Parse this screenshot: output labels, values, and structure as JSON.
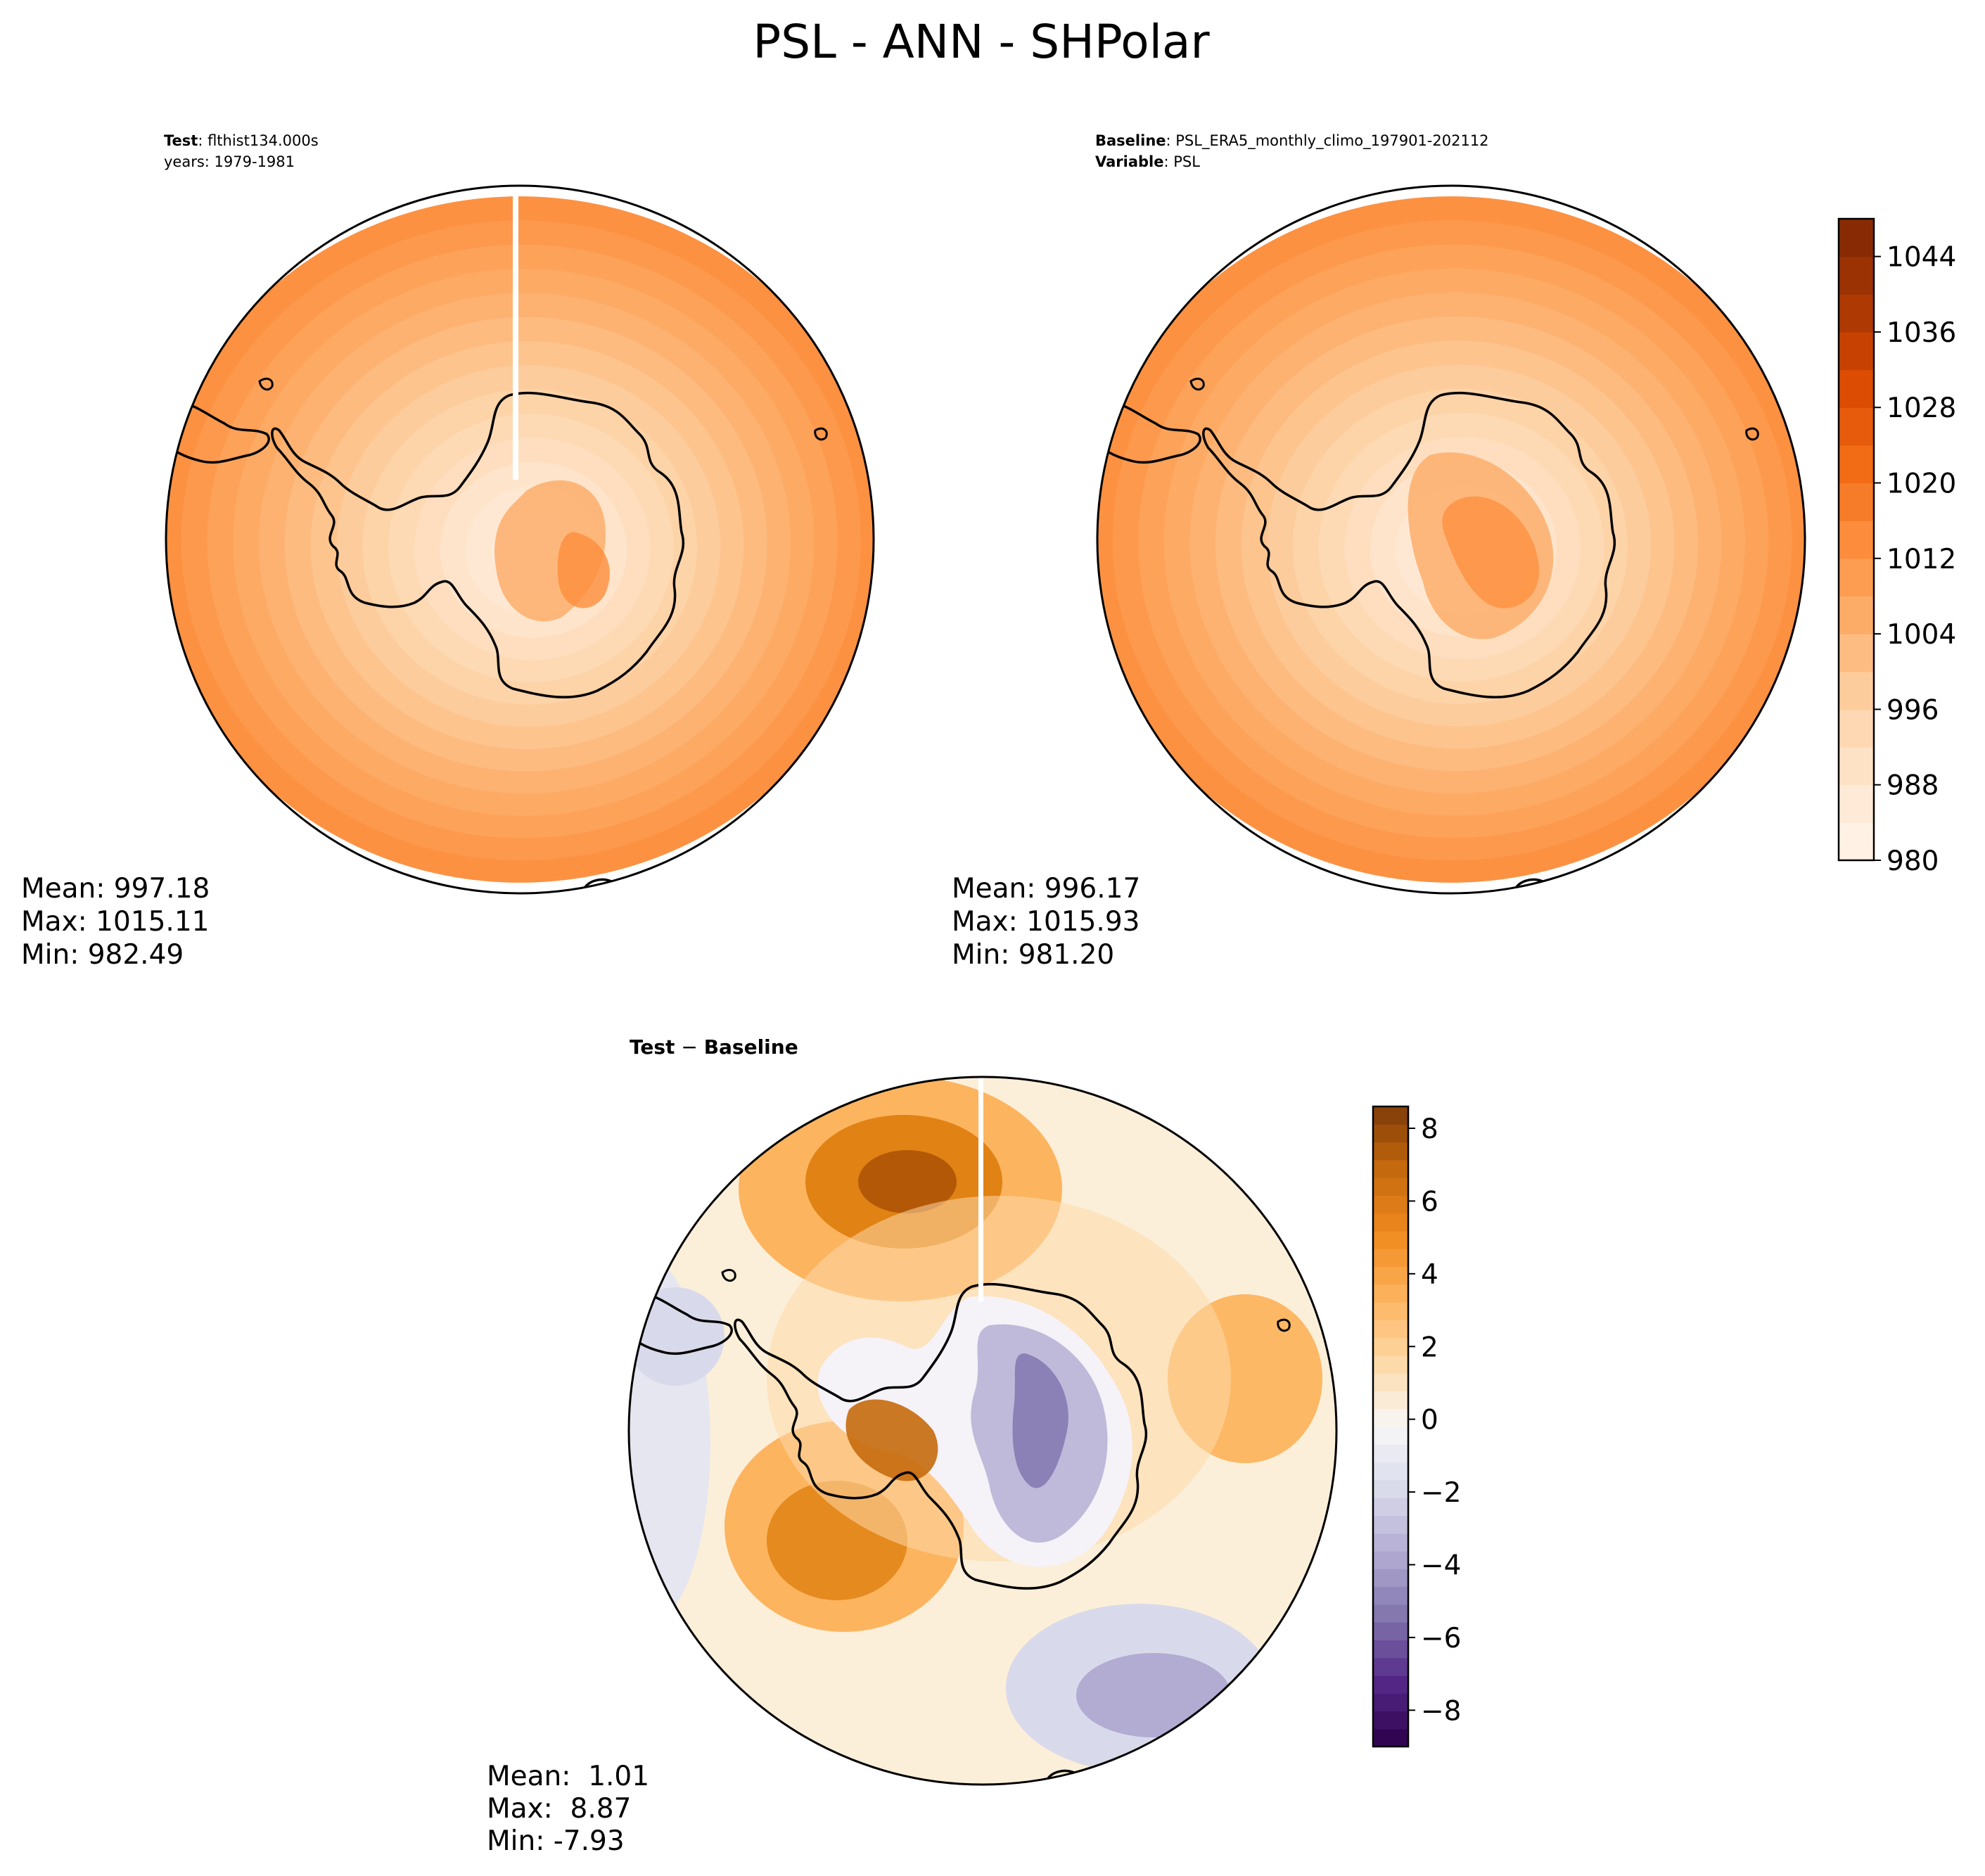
{
  "figure_title": "PSL - ANN - SHPolar",
  "colors": {
    "sequential": [
      "#fff5eb",
      "#fee6ce",
      "#fdd0a2",
      "#fdae6b",
      "#fd8d3c",
      "#f16913",
      "#d94801",
      "#a63603",
      "#7f2704"
    ],
    "diverging_pos": [
      "#fff7ec",
      "#fdd9a8",
      "#fdb45f",
      "#f08a1f",
      "#c66a0d",
      "#7f3b08"
    ],
    "diverging_neg": [
      "#f7f7f7",
      "#d8daeb",
      "#b2abd2",
      "#8073ac",
      "#542788",
      "#2d004b"
    ],
    "coast": "#000000"
  },
  "chart_data": [
    {
      "type": "heatmap",
      "projection": "south polar stereographic",
      "header": {
        "bold": "Test",
        "text": ": flthist134.000s",
        "line2": "years: 1979-1981"
      },
      "stats": {
        "mean": "Mean: 997.18",
        "max": "Max: 1015.11",
        "min": "Min: 982.49"
      },
      "field": {
        "low": 985,
        "high": 1013,
        "scale": "sequential"
      }
    },
    {
      "type": "heatmap",
      "projection": "south polar stereographic",
      "header": {
        "bold": "Baseline",
        "text": ": PSL_ERA5_monthly_climo_197901-202112",
        "bold2": "Variable",
        "text2": ": PSL"
      },
      "stats": {
        "mean": "Mean: 996.17",
        "max": "Max: 1015.93",
        "min": "Min: 981.20"
      },
      "colorbar": {
        "range": [
          980,
          1048
        ],
        "levels": 17,
        "ticks": [
          "980",
          "988",
          "996",
          "1004",
          "1012",
          "1020",
          "1028",
          "1036",
          "1044"
        ],
        "tick_values": [
          980,
          988,
          996,
          1004,
          1012,
          1020,
          1028,
          1036,
          1044
        ]
      }
    },
    {
      "type": "heatmap",
      "projection": "south polar stereographic",
      "header": {
        "bold": "Test",
        "minus": " − ",
        "bold2": "Baseline"
      },
      "stats": {
        "mean": "Mean:  1.01",
        "max": "Max:  8.87",
        "min": "Min: -7.93"
      },
      "colorbar": {
        "range": [
          -9,
          8.6
        ],
        "ticks": [
          "8",
          "6",
          "4",
          "2",
          "0",
          "−2",
          "−4",
          "−6",
          "−8"
        ],
        "tick_values": [
          8,
          6,
          4,
          2,
          0,
          -2,
          -4,
          -6,
          -8
        ]
      }
    }
  ]
}
